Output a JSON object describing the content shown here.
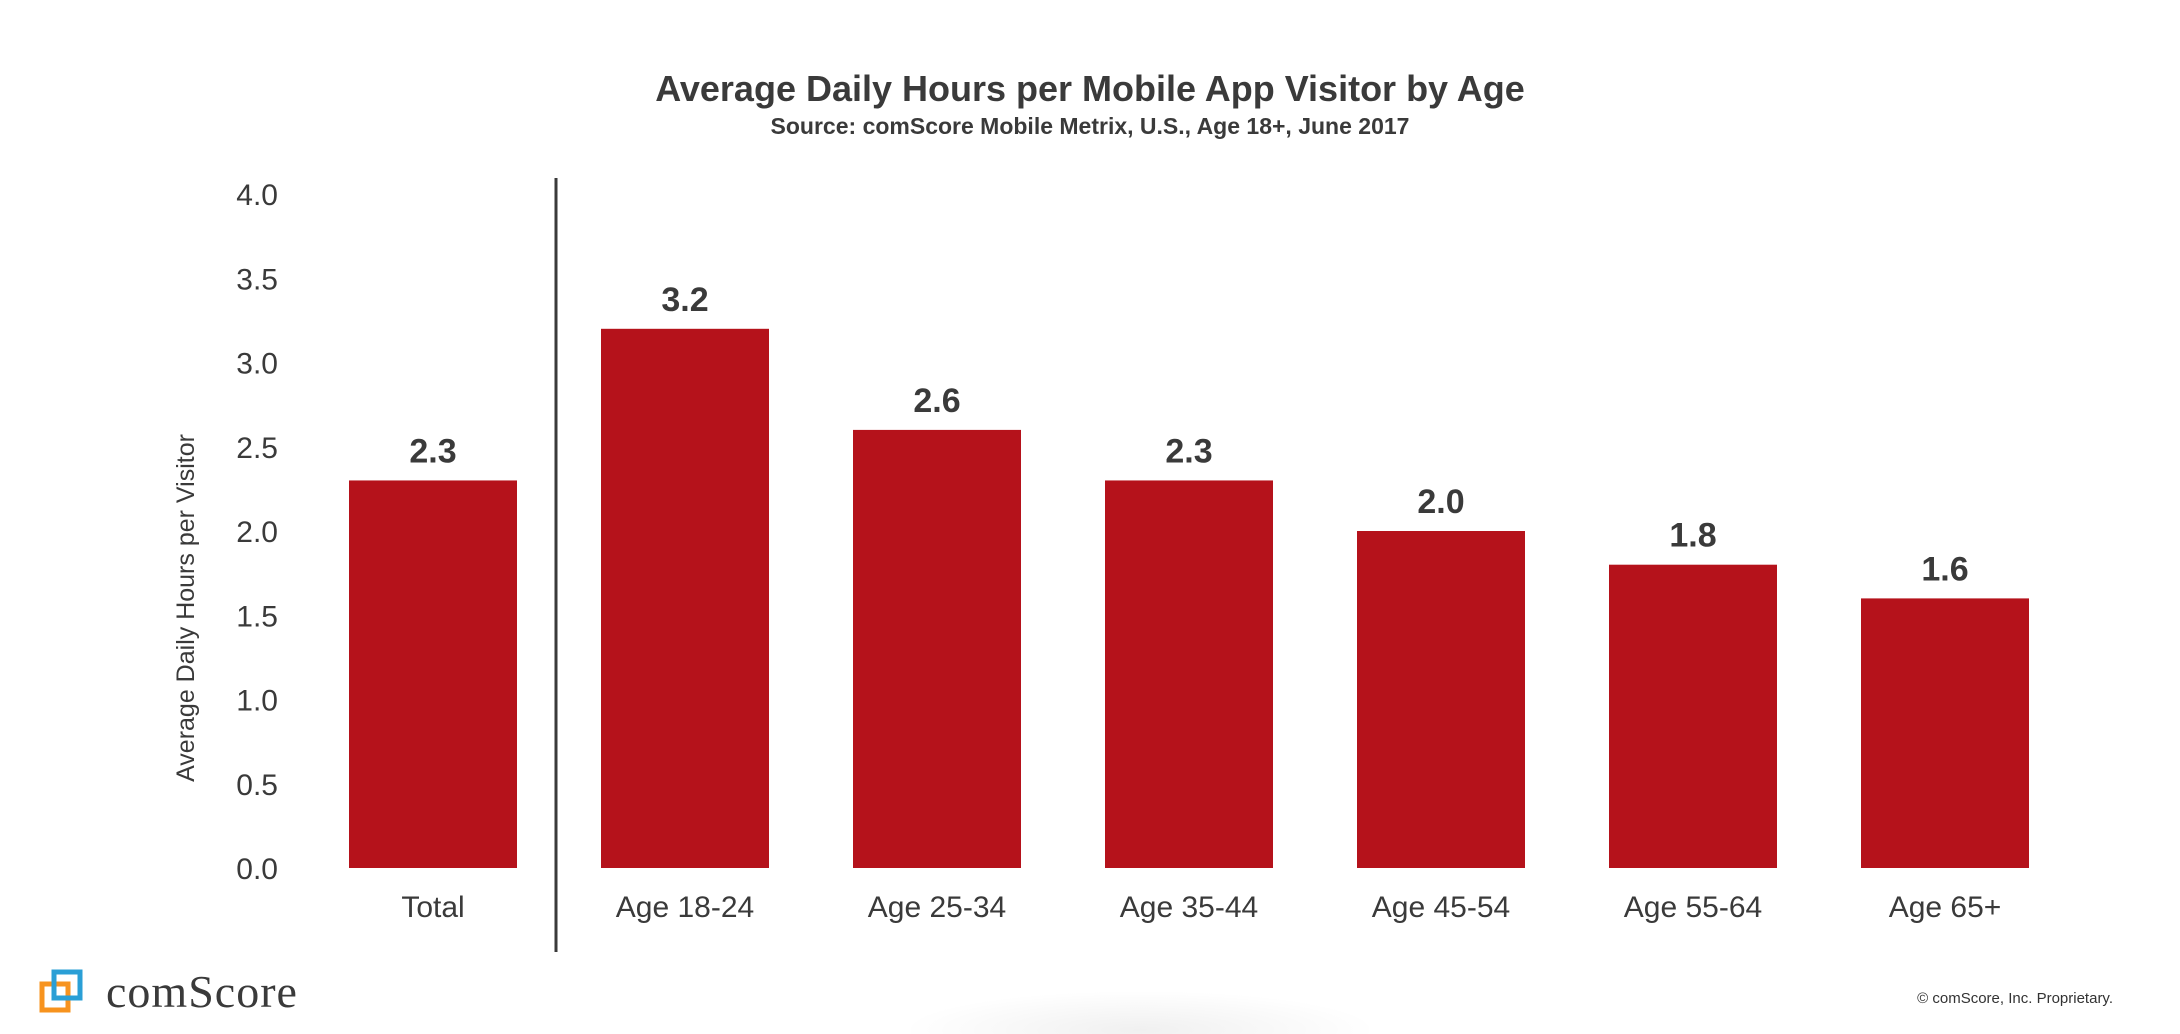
{
  "chart_data": {
    "type": "bar",
    "title": "Average Daily Hours per Mobile App Visitor by Age",
    "subtitle": "Source: comScore Mobile Metrix, U.S., Age 18+, June 2017",
    "xlabel": "",
    "ylabel": "Average Daily Hours per Visitor",
    "categories": [
      "Total",
      "Age 18-24",
      "Age 25-34",
      "Age 35-44",
      "Age 45-54",
      "Age 55-64",
      "Age 65+"
    ],
    "values": [
      2.3,
      3.2,
      2.6,
      2.3,
      2.0,
      1.8,
      1.6
    ],
    "data_labels": [
      "2.3",
      "3.2",
      "2.6",
      "2.3",
      "2.0",
      "1.8",
      "1.6"
    ],
    "ylim": [
      0,
      4.0
    ],
    "yticks": [
      "0.0",
      "0.5",
      "1.0",
      "1.5",
      "2.0",
      "2.5",
      "3.0",
      "3.5",
      "4.0"
    ],
    "grid": false,
    "legend": "none",
    "bar_color": "#b5121b"
  },
  "footer": {
    "logo_text": "comScore",
    "copyright": "© comScore, Inc. Proprietary."
  },
  "colors": {
    "bar": "#b5121b",
    "text": "#3a3a3a",
    "logo_orange": "#f7931e",
    "logo_blue": "#2a9fd6"
  }
}
